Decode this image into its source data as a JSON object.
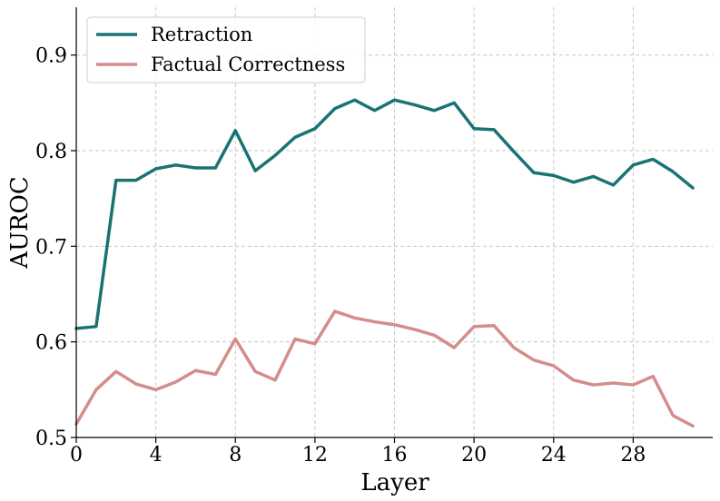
{
  "chart_data": {
    "type": "line",
    "title": "",
    "xlabel": "Layer",
    "ylabel": "AUROC",
    "xlim": [
      0,
      32
    ],
    "ylim": [
      0.5,
      0.95
    ],
    "xticks": [
      0,
      4,
      8,
      12,
      16,
      20,
      24,
      28
    ],
    "yticks": [
      0.5,
      0.6,
      0.7,
      0.8,
      0.9
    ],
    "ytick_labels": [
      "0.5",
      "0.6",
      "0.7",
      "0.8",
      "0.9"
    ],
    "grid": true,
    "legend_position": "top-left",
    "x": [
      0,
      1,
      2,
      3,
      4,
      5,
      6,
      7,
      8,
      9,
      10,
      11,
      12,
      13,
      14,
      15,
      16,
      17,
      18,
      19,
      20,
      21,
      22,
      23,
      24,
      25,
      26,
      27,
      28,
      29,
      30,
      31
    ],
    "series": [
      {
        "name": "Retraction",
        "color": "#1a7373",
        "values": [
          0.614,
          0.616,
          0.769,
          0.769,
          0.781,
          0.785,
          0.782,
          0.782,
          0.821,
          0.779,
          0.795,
          0.814,
          0.823,
          0.844,
          0.853,
          0.842,
          0.853,
          0.848,
          0.842,
          0.85,
          0.823,
          0.822,
          0.799,
          0.777,
          0.774,
          0.767,
          0.773,
          0.764,
          0.785,
          0.791,
          0.778,
          0.761
        ]
      },
      {
        "name": "Factual Correctness",
        "color": "#d48c8c",
        "values": [
          0.514,
          0.55,
          0.569,
          0.556,
          0.55,
          0.558,
          0.57,
          0.566,
          0.603,
          0.569,
          0.56,
          0.603,
          0.598,
          0.632,
          0.625,
          0.621,
          0.618,
          0.613,
          0.607,
          0.594,
          0.616,
          0.617,
          0.594,
          0.581,
          0.575,
          0.56,
          0.555,
          0.557,
          0.555,
          0.564,
          0.523,
          0.512
        ]
      }
    ]
  }
}
